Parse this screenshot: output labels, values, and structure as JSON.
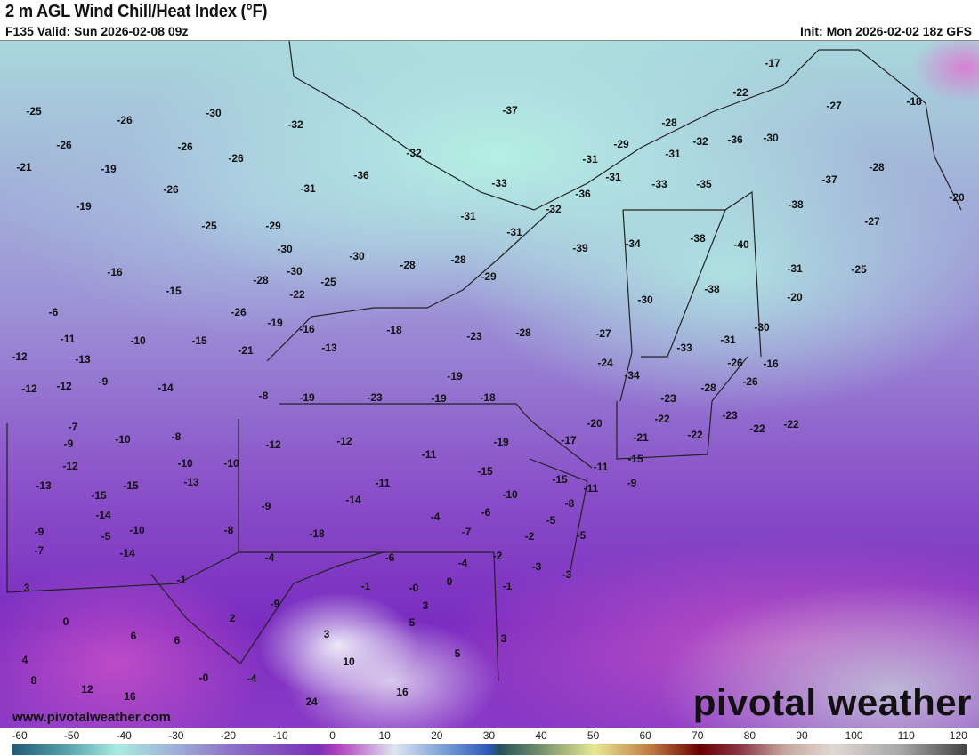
{
  "header": {
    "title": "2 m AGL Wind Chill/Heat Index (°F)",
    "valid": "F135 Valid: Sun 2026-02-08 09z",
    "init": "Init: Mon 2026-02-02 18z GFS"
  },
  "map": {
    "units": "°F",
    "labels": [
      "-17",
      "-22",
      "-27",
      "-18",
      "-25",
      "-26",
      "-30",
      "-32",
      "-37",
      "-28",
      "-32",
      "-36",
      "-30",
      "-29",
      "-26",
      "-26",
      "-31",
      "-31",
      "-21",
      "-19",
      "-26",
      "-32",
      "-36",
      "-28",
      "-31",
      "-33",
      "-35",
      "-37",
      "-33",
      "-31",
      "-26",
      "-36",
      "-20",
      "-19",
      "-38",
      "-32",
      "-27",
      "-31",
      "-25",
      "-29",
      "-31",
      "-38",
      "-40",
      "-34",
      "-39",
      "-30",
      "-30",
      "-28",
      "-28",
      "-16",
      "-30",
      "-31",
      "-25",
      "-29",
      "-28",
      "-25",
      "-15",
      "-22",
      "-38",
      "-20",
      "-30",
      "-6",
      "-26",
      "-19",
      "-16",
      "-18",
      "-23",
      "-28",
      "-27",
      "-30",
      "-31",
      "-33",
      "-11",
      "-10",
      "-15",
      "-13",
      "-21",
      "-12",
      "-13",
      "-24",
      "-26",
      "-16",
      "-19",
      "-34",
      "-9",
      "-12",
      "-12",
      "-14",
      "-28",
      "-26",
      "-8",
      "-19",
      "-23",
      "-19",
      "-18",
      "-23",
      "-20",
      "-22",
      "-23",
      "-22",
      "-22",
      "-7",
      "-10",
      "-8",
      "-21",
      "-22",
      "-17",
      "-12",
      "-12",
      "-19",
      "-9",
      "-12",
      "-10",
      "-10",
      "-11",
      "-15",
      "-11",
      "-15",
      "-13",
      "-15",
      "-15",
      "-13",
      "-11",
      "-15",
      "-11",
      "-9",
      "-10",
      "-14",
      "-9",
      "-8",
      "-14",
      "-4",
      "-6",
      "-5",
      "-9",
      "-5",
      "-10",
      "-8",
      "-18",
      "-7",
      "-2",
      "-5",
      "-7",
      "-14",
      "-4",
      "-6",
      "-4",
      "-2",
      "-3",
      "-3",
      "-1",
      "-1",
      "-0",
      "0",
      "-1",
      "3",
      "-9",
      "0",
      "2",
      "5",
      "6",
      "6",
      "3",
      "3",
      "4",
      "5",
      "10",
      "8",
      "-0",
      "-4",
      "12",
      "16",
      "16",
      "24",
      "3"
    ]
  },
  "footer": {
    "website": "www.pivotalweather.com",
    "logo": "pivotal weather"
  },
  "colorbar": {
    "ticks": [
      "-60",
      "-50",
      "-40",
      "-30",
      "-20",
      "-10",
      "0",
      "10",
      "20",
      "30",
      "40",
      "50",
      "60",
      "70",
      "80",
      "90",
      "100",
      "110",
      "120"
    ],
    "min": -60,
    "max": 120,
    "colors": {
      "cold": "#1f5c78",
      "cyan": "#a8ece0",
      "purple": "#7a30b8",
      "magenta": "#b040c0",
      "blue": "#2a58b8",
      "yellow": "#e8e890",
      "darkred": "#6a0000",
      "gray": "#444444"
    }
  }
}
